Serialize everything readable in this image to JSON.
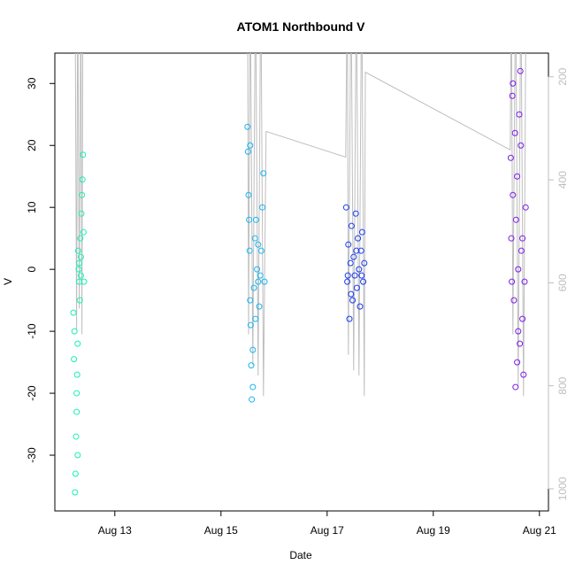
{
  "chart_data": {
    "type": "scatter",
    "title": "ATOM1 Northbound V",
    "x_label": "Date",
    "y_label": "V",
    "xlim": [
      11.87,
      21.17
    ],
    "xticks": [
      {
        "value": 13,
        "label": "Aug 13"
      },
      {
        "value": 15,
        "label": "Aug 15"
      },
      {
        "value": 17,
        "label": "Aug 17"
      },
      {
        "value": 19,
        "label": "Aug 19"
      },
      {
        "value": 21,
        "label": "Aug 21"
      }
    ],
    "ylim": [
      -39,
      34.9
    ],
    "yticks": [
      -30,
      -20,
      -10,
      0,
      10,
      20,
      30
    ],
    "y2lim": [
      154,
      1043
    ],
    "y2ticks": [
      200,
      400,
      600,
      800,
      1000
    ],
    "series": [
      {
        "color": "#bebebe",
        "type": "line",
        "axis": "y2",
        "x": [
          12.25,
          12.28,
          12.3,
          12.33,
          12.36,
          12.38,
          12.4,
          15.5,
          15.52,
          15.55,
          15.6,
          15.65,
          15.7,
          15.75,
          15.8,
          15.85,
          17.35,
          17.38,
          17.4,
          17.45,
          17.5,
          17.55,
          17.6,
          17.65,
          17.7,
          17.72,
          20.45,
          20.47,
          20.5,
          20.55,
          20.6,
          20.65,
          20.7,
          20.75
        ],
        "values": [
          0,
          690,
          0,
          650,
          0,
          700,
          0,
          0,
          700,
          0,
          760,
          0,
          780,
          0,
          820,
          306,
          356,
          0,
          740,
          0,
          770,
          0,
          780,
          0,
          820,
          191,
          342,
          0,
          700,
          0,
          800,
          0,
          820,
          0
        ]
      },
      {
        "color": "#19f0b4",
        "x": [
          12.22,
          12.23,
          12.24,
          12.25,
          12.26,
          12.27,
          12.28,
          12.29,
          12.3,
          12.31,
          12.32,
          12.33,
          12.34,
          12.35,
          12.36,
          12.37,
          12.38,
          12.39,
          12.4,
          12.41,
          12.42,
          12.3,
          12.28,
          12.33,
          12.36
        ],
        "values": [
          -7,
          -14.5,
          -10,
          -36,
          -33,
          -27,
          -20,
          -17,
          -12,
          3,
          0,
          -2,
          -5,
          5,
          2,
          9,
          12,
          14.5,
          18.5,
          6,
          -2,
          -30,
          -23,
          1,
          -1
        ]
      },
      {
        "color": "#1ab4f0",
        "x": [
          15.5,
          15.51,
          15.52,
          15.53,
          15.54,
          15.55,
          15.56,
          15.57,
          15.58,
          15.6,
          15.62,
          15.64,
          15.66,
          15.68,
          15.7,
          15.72,
          15.74,
          15.76,
          15.78,
          15.8,
          15.82,
          15.55,
          15.6,
          15.65,
          15.7
        ],
        "values": [
          23,
          19,
          12,
          8,
          3,
          -5,
          -9,
          -15.5,
          -21,
          -13,
          -3,
          5,
          8,
          0,
          -2,
          -6,
          -1,
          3,
          10,
          15.5,
          -2,
          20,
          -19,
          -8,
          4
        ]
      },
      {
        "color": "#1a3cf0",
        "x": [
          17.36,
          17.38,
          17.4,
          17.42,
          17.44,
          17.46,
          17.48,
          17.5,
          17.52,
          17.54,
          17.56,
          17.58,
          17.6,
          17.62,
          17.64,
          17.66,
          17.68,
          17.7,
          17.39,
          17.45,
          17.55,
          17.65
        ],
        "values": [
          10,
          -2,
          4,
          -8,
          1,
          7,
          -5,
          2,
          -1,
          9,
          -3,
          5,
          0,
          -6,
          3,
          6,
          -2,
          1,
          -1,
          -4,
          3,
          -1
        ]
      },
      {
        "color": "#7a1ee8",
        "x": [
          20.46,
          20.47,
          20.48,
          20.49,
          20.5,
          20.52,
          20.54,
          20.55,
          20.56,
          20.58,
          20.6,
          20.62,
          20.63,
          20.64,
          20.66,
          20.68,
          20.7,
          20.72,
          20.74,
          20.5,
          20.58,
          20.65,
          20.68,
          20.6
        ],
        "values": [
          18,
          5,
          -2,
          28,
          12,
          -5,
          22,
          -19,
          8,
          15,
          0,
          25,
          -12,
          32,
          3,
          -8,
          -17,
          -2,
          10,
          30,
          -15,
          20,
          5,
          -10
        ]
      }
    ]
  }
}
